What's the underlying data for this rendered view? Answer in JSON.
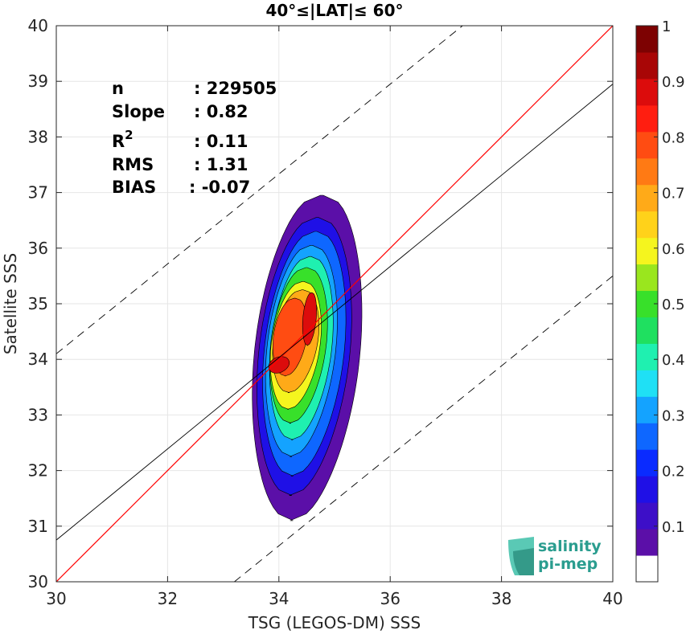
{
  "chart_data": {
    "type": "heatmap",
    "title": "40°≤|LAT|≤ 60°",
    "xlabel": "TSG (LEGOS-DM) SSS",
    "ylabel": "Satellite SSS",
    "xlim": [
      30,
      40
    ],
    "ylim": [
      30,
      40
    ],
    "xticks": [
      "30",
      "32",
      "34",
      "36",
      "38",
      "40"
    ],
    "yticks": [
      "30",
      "31",
      "32",
      "33",
      "34",
      "35",
      "36",
      "37",
      "38",
      "39",
      "40"
    ],
    "grid": true,
    "colorbar": {
      "range": [
        0,
        1
      ],
      "ticks": [
        "0.1",
        "0.2",
        "0.3",
        "0.4",
        "0.5",
        "0.6",
        "0.7",
        "0.8",
        "0.9",
        "1"
      ],
      "tick_values": [
        0.1,
        0.2,
        0.3,
        0.4,
        0.5,
        0.6,
        0.7,
        0.8,
        0.9,
        1.0
      ],
      "colors": [
        "#ffffff",
        "#5b0fa8",
        "#3d0fc8",
        "#1f10e6",
        "#0a2bff",
        "#0e67ff",
        "#14a3ff",
        "#1fe0f5",
        "#1ff0b0",
        "#1fe060",
        "#38e02a",
        "#9ae61e",
        "#f5f51e",
        "#ffd21a",
        "#ffaa18",
        "#ff7a14",
        "#ff4c12",
        "#ff1e10",
        "#dc0c0c",
        "#a80606",
        "#7d0202"
      ]
    },
    "stats": {
      "n": {
        "label": "n",
        "value": ": 229505"
      },
      "slope": {
        "label": "Slope",
        "value": ": 0.82"
      },
      "r2": {
        "label": "R",
        "sup": "2",
        "value": ": 0.11"
      },
      "rms": {
        "label": "RMS",
        "value": ": 1.31"
      },
      "bias": {
        "label": "BIAS",
        "value": ": -0.07"
      }
    },
    "lines": {
      "identity": {
        "color": "#ff0000",
        "slope": 1,
        "intercept": 0
      },
      "fit": {
        "color": "#000000",
        "slope": 0.82,
        "points": [
          [
            30,
            30.75
          ],
          [
            40,
            38.95
          ]
        ]
      },
      "upper_bound": {
        "color": "#000000",
        "style": "dashed",
        "points": [
          [
            30,
            34.1
          ],
          [
            37.3,
            40
          ]
        ]
      },
      "lower_bound": {
        "color": "#000000",
        "style": "dashed",
        "points": [
          [
            33.2,
            30
          ],
          [
            40,
            35.5
          ]
        ]
      }
    },
    "density_levels": [
      {
        "level": 0.05,
        "color": "#5b0fa8",
        "center": [
          34.5,
          34.0
        ],
        "half_width": [
          0.95,
          0.7
        ],
        "y_range": [
          31.1,
          36.95
        ]
      },
      {
        "level": 0.15,
        "color": "#1f10e6",
        "center": [
          34.45,
          34.0
        ],
        "half_width": [
          0.82,
          0.62
        ],
        "y_range": [
          31.55,
          36.55
        ]
      },
      {
        "level": 0.25,
        "color": "#0e67ff",
        "center": [
          34.45,
          34.05
        ],
        "half_width": [
          0.72,
          0.55
        ],
        "y_range": [
          31.9,
          36.3
        ]
      },
      {
        "level": 0.35,
        "color": "#14a3ff",
        "center": [
          34.4,
          34.1
        ],
        "half_width": [
          0.62,
          0.48
        ],
        "y_range": [
          32.25,
          36.05
        ]
      },
      {
        "level": 0.45,
        "color": "#1ff0b0",
        "center": [
          34.4,
          34.2
        ],
        "half_width": [
          0.55,
          0.42
        ],
        "y_range": [
          32.55,
          35.85
        ]
      },
      {
        "level": 0.55,
        "color": "#38e02a",
        "center": [
          34.35,
          34.25
        ],
        "half_width": [
          0.5,
          0.38
        ],
        "y_range": [
          32.85,
          35.65
        ]
      },
      {
        "level": 0.65,
        "color": "#f5f51e",
        "center": [
          34.3,
          34.3
        ],
        "half_width": [
          0.44,
          0.35
        ],
        "y_range": [
          33.1,
          35.4
        ]
      },
      {
        "level": 0.75,
        "color": "#ffaa18",
        "center": [
          34.3,
          34.4
        ],
        "half_width": [
          0.4,
          0.32
        ],
        "y_range": [
          33.4,
          35.25
        ]
      },
      {
        "level": 0.85,
        "color": "#ff4c12",
        "center": [
          34.2,
          34.3
        ],
        "half_width": [
          0.3,
          0.22
        ],
        "y_range": [
          33.7,
          35.1
        ]
      },
      {
        "level": 0.92,
        "color": "#dc0c0c",
        "center": [
          34.0,
          33.9
        ],
        "half_width": [
          0.18,
          0.12
        ],
        "y_range": [
          33.75,
          34.05
        ]
      },
      {
        "level": 0.95,
        "color": "#dc0c0c",
        "center": [
          34.55,
          34.7
        ],
        "half_width": [
          0.12,
          0.1
        ],
        "y_range": [
          34.25,
          35.2
        ]
      }
    ]
  },
  "logo": {
    "line1": "salinity",
    "line2": "pi-mep"
  }
}
